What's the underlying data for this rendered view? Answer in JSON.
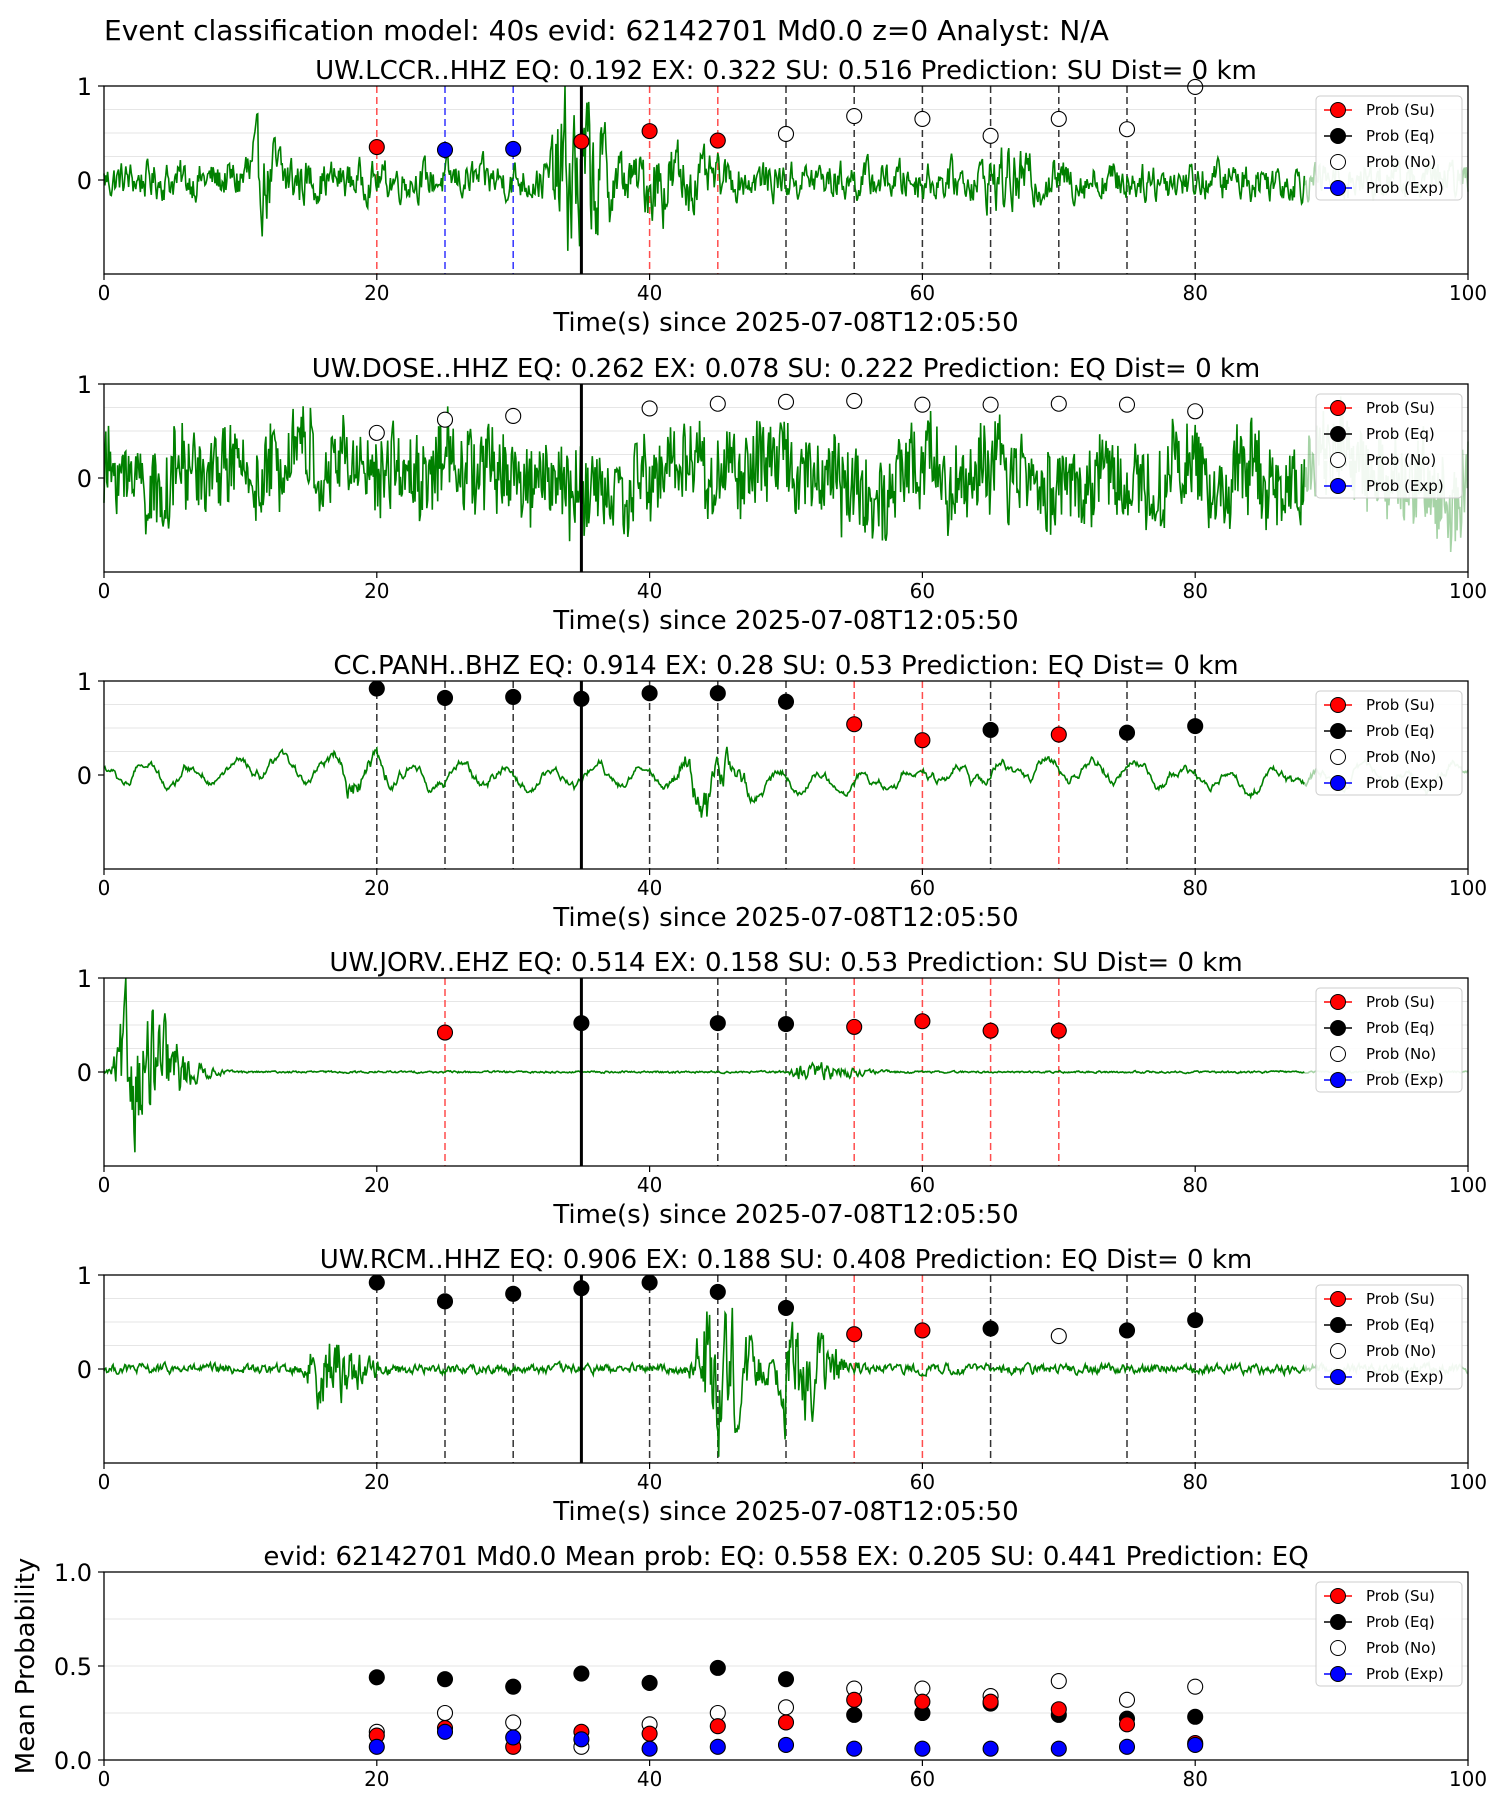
{
  "figure": {
    "suptitle": "Event classification model: 40s evid: 62142701 Md0.0 z=0 Analyst: N/A"
  },
  "legend_labels": [
    "Prob (Su)",
    "Prob (Eq)",
    "Prob (No)",
    "Prob (Exp)"
  ],
  "colors": {
    "su": "#ff0000",
    "eq": "#000000",
    "no": "#ffffff",
    "exp": "#0000ff",
    "waveform": "#008000",
    "waveform_faded": "#c8e6c8"
  },
  "chart_data": [
    {
      "type": "line",
      "title": "UW.LCCR..HHZ   EQ: 0.192  EX: 0.322  SU: 0.516   Prediction: SU    Dist= 0 km",
      "xlabel": "Time(s) since 2025-07-08T12:05:50",
      "ylabel": "",
      "xlim": [
        0,
        100
      ],
      "ylim": [
        -1,
        1
      ],
      "xticks": [
        0,
        20,
        40,
        60,
        80,
        100
      ],
      "yticks": [
        1,
        0
      ],
      "origin_time": 35,
      "waveform": {
        "style": "mixed",
        "amplitude": 0.28,
        "events": [
          {
            "t": 11.5,
            "a": 0.35
          },
          {
            "t": 34.5,
            "a": 1.0
          },
          {
            "t": 41,
            "a": 0.35
          },
          {
            "t": 66,
            "a": 0.2
          }
        ]
      },
      "windows": [
        {
          "t": 20,
          "class": "su"
        },
        {
          "t": 25,
          "class": "exp"
        },
        {
          "t": 30,
          "class": "exp"
        },
        {
          "t": 35,
          "class": "su"
        },
        {
          "t": 40,
          "class": "su"
        },
        {
          "t": 45,
          "class": "su"
        },
        {
          "t": 50,
          "class": "no"
        },
        {
          "t": 55,
          "class": "no"
        },
        {
          "t": 60,
          "class": "no"
        },
        {
          "t": 65,
          "class": "no"
        },
        {
          "t": 70,
          "class": "no"
        },
        {
          "t": 75,
          "class": "no"
        },
        {
          "t": 80,
          "class": "no"
        }
      ],
      "points": [
        {
          "t": 20,
          "p": 0.35,
          "class": "su"
        },
        {
          "t": 25,
          "p": 0.32,
          "class": "exp"
        },
        {
          "t": 30,
          "p": 0.33,
          "class": "exp"
        },
        {
          "t": 35,
          "p": 0.41,
          "class": "su"
        },
        {
          "t": 40,
          "p": 0.52,
          "class": "su"
        },
        {
          "t": 45,
          "p": 0.42,
          "class": "su"
        },
        {
          "t": 50,
          "p": 0.49,
          "class": "no"
        },
        {
          "t": 55,
          "p": 0.68,
          "class": "no"
        },
        {
          "t": 60,
          "p": 0.65,
          "class": "no"
        },
        {
          "t": 65,
          "p": 0.47,
          "class": "no"
        },
        {
          "t": 70,
          "p": 0.65,
          "class": "no"
        },
        {
          "t": 75,
          "p": 0.54,
          "class": "no"
        },
        {
          "t": 80,
          "p": 0.99,
          "class": "no"
        }
      ]
    },
    {
      "type": "line",
      "title": "UW.DOSE..HHZ   EQ: 0.262  EX: 0.078  SU: 0.222   Prediction: EQ    Dist= 0 km",
      "xlabel": "Time(s) since 2025-07-08T12:05:50",
      "ylabel": "",
      "xlim": [
        0,
        100
      ],
      "ylim": [
        -1,
        1
      ],
      "xticks": [
        0,
        20,
        40,
        60,
        80,
        100
      ],
      "yticks": [
        1,
        0
      ],
      "origin_time": 35,
      "waveform": {
        "style": "noise",
        "amplitude": 0.55,
        "events": []
      },
      "windows": [],
      "points": [
        {
          "t": 20,
          "p": 0.48,
          "class": "no"
        },
        {
          "t": 25,
          "p": 0.62,
          "class": "no"
        },
        {
          "t": 30,
          "p": 0.66,
          "class": "no"
        },
        {
          "t": 40,
          "p": 0.74,
          "class": "no"
        },
        {
          "t": 45,
          "p": 0.79,
          "class": "no"
        },
        {
          "t": 50,
          "p": 0.81,
          "class": "no"
        },
        {
          "t": 55,
          "p": 0.82,
          "class": "no"
        },
        {
          "t": 60,
          "p": 0.78,
          "class": "no"
        },
        {
          "t": 65,
          "p": 0.78,
          "class": "no"
        },
        {
          "t": 70,
          "p": 0.79,
          "class": "no"
        },
        {
          "t": 75,
          "p": 0.78,
          "class": "no"
        },
        {
          "t": 80,
          "p": 0.71,
          "class": "no"
        }
      ]
    },
    {
      "type": "line",
      "title": "CC.PANH..BHZ   EQ: 0.914  EX: 0.28  SU: 0.53   Prediction: EQ    Dist= 0 km",
      "xlabel": "Time(s) since 2025-07-08T12:05:50",
      "ylabel": "",
      "xlim": [
        0,
        100
      ],
      "ylim": [
        -1,
        1
      ],
      "xticks": [
        0,
        20,
        40,
        60,
        80,
        100
      ],
      "yticks": [
        1,
        0
      ],
      "origin_time": 35,
      "waveform": {
        "style": "smooth",
        "amplitude": 0.18,
        "events": [
          {
            "t": 18,
            "a": 0.3
          },
          {
            "t": 44,
            "a": 0.75
          }
        ]
      },
      "windows": [
        {
          "t": 20,
          "class": "eq"
        },
        {
          "t": 25,
          "class": "eq"
        },
        {
          "t": 30,
          "class": "eq"
        },
        {
          "t": 35,
          "class": "eq"
        },
        {
          "t": 40,
          "class": "eq"
        },
        {
          "t": 45,
          "class": "eq"
        },
        {
          "t": 50,
          "class": "eq"
        },
        {
          "t": 55,
          "class": "su"
        },
        {
          "t": 60,
          "class": "su"
        },
        {
          "t": 65,
          "class": "eq"
        },
        {
          "t": 70,
          "class": "su"
        },
        {
          "t": 75,
          "class": "eq"
        },
        {
          "t": 80,
          "class": "eq"
        }
      ],
      "points": [
        {
          "t": 20,
          "p": 0.92,
          "class": "eq"
        },
        {
          "t": 25,
          "p": 0.82,
          "class": "eq"
        },
        {
          "t": 30,
          "p": 0.83,
          "class": "eq"
        },
        {
          "t": 35,
          "p": 0.81,
          "class": "eq"
        },
        {
          "t": 40,
          "p": 0.87,
          "class": "eq"
        },
        {
          "t": 45,
          "p": 0.87,
          "class": "eq"
        },
        {
          "t": 50,
          "p": 0.78,
          "class": "eq"
        },
        {
          "t": 55,
          "p": 0.54,
          "class": "su"
        },
        {
          "t": 60,
          "p": 0.37,
          "class": "su"
        },
        {
          "t": 65,
          "p": 0.48,
          "class": "eq"
        },
        {
          "t": 70,
          "p": 0.43,
          "class": "su"
        },
        {
          "t": 75,
          "p": 0.45,
          "class": "eq"
        },
        {
          "t": 80,
          "p": 0.52,
          "class": "eq"
        }
      ]
    },
    {
      "type": "line",
      "title": "UW.JORV..EHZ   EQ: 0.514  EX: 0.158  SU: 0.53   Prediction: SU    Dist= 0 km",
      "xlabel": "Time(s) since 2025-07-08T12:05:50",
      "ylabel": "",
      "xlim": [
        0,
        100
      ],
      "ylim": [
        -1,
        1
      ],
      "xticks": [
        0,
        20,
        40,
        60,
        80,
        100
      ],
      "yticks": [
        1,
        0
      ],
      "origin_time": 35,
      "waveform": {
        "style": "quiet",
        "amplitude": 0.015,
        "events": [
          {
            "t": 2.5,
            "a": 0.95
          },
          {
            "t": 52,
            "a": 0.12
          }
        ]
      },
      "windows": [
        {
          "t": 25,
          "class": "su"
        },
        {
          "t": 35,
          "class": "eq"
        },
        {
          "t": 45,
          "class": "eq"
        },
        {
          "t": 50,
          "class": "eq"
        },
        {
          "t": 55,
          "class": "su"
        },
        {
          "t": 60,
          "class": "su"
        },
        {
          "t": 65,
          "class": "su"
        },
        {
          "t": 70,
          "class": "su"
        }
      ],
      "points": [
        {
          "t": 25,
          "p": 0.42,
          "class": "su"
        },
        {
          "t": 35,
          "p": 0.52,
          "class": "eq"
        },
        {
          "t": 45,
          "p": 0.52,
          "class": "eq"
        },
        {
          "t": 50,
          "p": 0.51,
          "class": "eq"
        },
        {
          "t": 55,
          "p": 0.48,
          "class": "su"
        },
        {
          "t": 60,
          "p": 0.54,
          "class": "su"
        },
        {
          "t": 65,
          "p": 0.44,
          "class": "su"
        },
        {
          "t": 70,
          "p": 0.44,
          "class": "su"
        }
      ]
    },
    {
      "type": "line",
      "title": "UW.RCM..HHZ   EQ: 0.906  EX: 0.188  SU: 0.408   Prediction: EQ    Dist= 0 km",
      "xlabel": "Time(s) since 2025-07-08T12:05:50",
      "ylabel": "",
      "xlim": [
        0,
        100
      ],
      "ylim": [
        -1,
        1
      ],
      "xticks": [
        0,
        20,
        40,
        60,
        80,
        100
      ],
      "yticks": [
        1,
        0
      ],
      "origin_time": 35,
      "waveform": {
        "style": "mixed",
        "amplitude": 0.07,
        "events": [
          {
            "t": 16.5,
            "a": 0.45
          },
          {
            "t": 45,
            "a": 0.95
          },
          {
            "t": 51,
            "a": 0.7
          }
        ]
      },
      "windows": [
        {
          "t": 20,
          "class": "eq"
        },
        {
          "t": 25,
          "class": "eq"
        },
        {
          "t": 30,
          "class": "eq"
        },
        {
          "t": 35,
          "class": "eq"
        },
        {
          "t": 40,
          "class": "eq"
        },
        {
          "t": 45,
          "class": "eq"
        },
        {
          "t": 50,
          "class": "eq"
        },
        {
          "t": 55,
          "class": "su"
        },
        {
          "t": 60,
          "class": "su"
        },
        {
          "t": 65,
          "class": "eq"
        },
        {
          "t": 75,
          "class": "eq"
        },
        {
          "t": 80,
          "class": "eq"
        }
      ],
      "points": [
        {
          "t": 20,
          "p": 0.92,
          "class": "eq"
        },
        {
          "t": 25,
          "p": 0.72,
          "class": "eq"
        },
        {
          "t": 30,
          "p": 0.8,
          "class": "eq"
        },
        {
          "t": 35,
          "p": 0.86,
          "class": "eq"
        },
        {
          "t": 40,
          "p": 0.92,
          "class": "eq"
        },
        {
          "t": 45,
          "p": 0.82,
          "class": "eq"
        },
        {
          "t": 50,
          "p": 0.65,
          "class": "eq"
        },
        {
          "t": 55,
          "p": 0.37,
          "class": "su"
        },
        {
          "t": 60,
          "p": 0.41,
          "class": "su"
        },
        {
          "t": 65,
          "p": 0.43,
          "class": "eq"
        },
        {
          "t": 70,
          "p": 0.35,
          "class": "no"
        },
        {
          "t": 75,
          "p": 0.41,
          "class": "eq"
        },
        {
          "t": 80,
          "p": 0.52,
          "class": "eq"
        }
      ]
    },
    {
      "type": "scatter",
      "title": "evid: 62142701  Md0.0   Mean prob:   EQ: 0.558  EX: 0.205  SU: 0.441   Prediction: EQ",
      "xlabel": "",
      "ylabel": "Mean Probability",
      "xlim": [
        0,
        100
      ],
      "ylim": [
        0,
        1
      ],
      "xticks": [
        0,
        20,
        40,
        60,
        80,
        100
      ],
      "yticks": [
        1.0,
        0.5,
        0.0
      ],
      "ytick_labels": [
        "1.0",
        "0.5",
        "0.0"
      ],
      "x": [
        20,
        25,
        30,
        35,
        40,
        45,
        50,
        55,
        60,
        65,
        70,
        75,
        80
      ],
      "series": [
        {
          "name": "Prob (No)",
          "class": "no",
          "values": [
            0.15,
            0.25,
            0.2,
            0.07,
            0.19,
            0.25,
            0.28,
            0.38,
            0.38,
            0.34,
            0.42,
            0.32,
            0.39
          ]
        },
        {
          "name": "Prob (Eq)",
          "class": "eq",
          "values": [
            0.44,
            0.43,
            0.39,
            0.46,
            0.41,
            0.49,
            0.43,
            0.24,
            0.25,
            0.3,
            0.24,
            0.22,
            0.23
          ]
        },
        {
          "name": "Prob (Su)",
          "class": "su",
          "values": [
            0.13,
            0.17,
            0.07,
            0.15,
            0.14,
            0.18,
            0.2,
            0.32,
            0.31,
            0.31,
            0.27,
            0.19,
            0.09
          ]
        },
        {
          "name": "Prob (Exp)",
          "class": "exp",
          "values": [
            0.07,
            0.15,
            0.12,
            0.11,
            0.06,
            0.07,
            0.08,
            0.06,
            0.06,
            0.06,
            0.06,
            0.07,
            0.08
          ]
        }
      ]
    }
  ]
}
